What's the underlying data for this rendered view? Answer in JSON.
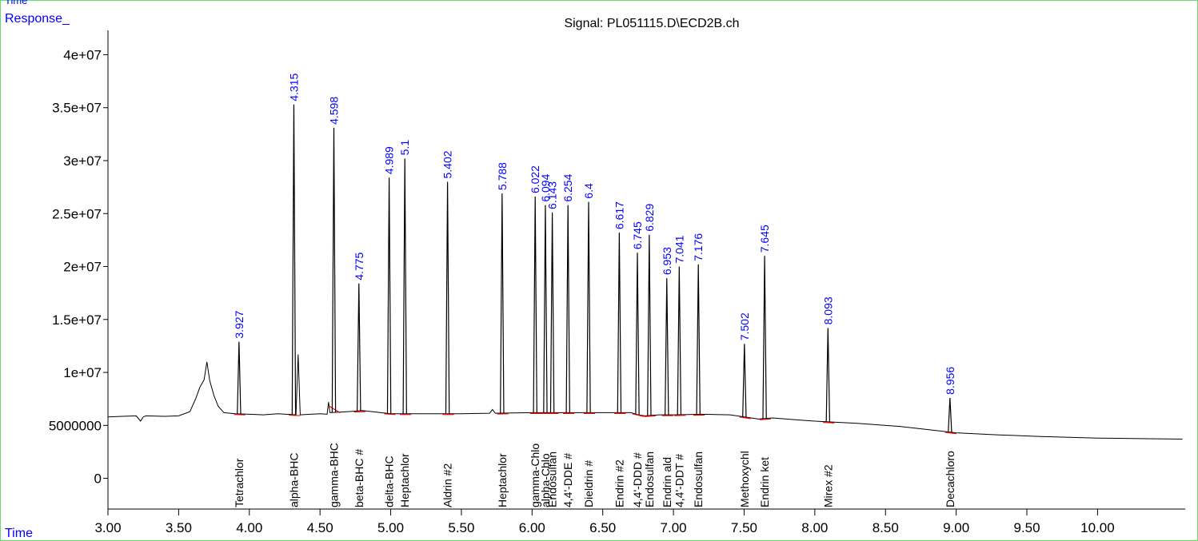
{
  "chart_data": {
    "type": "line",
    "title": "Signal: PL051115.D\\ECD2B.ch",
    "top_label": "Time",
    "y_label": "Response_",
    "x_label": "Time",
    "color": "#000000",
    "peak_label_color": "#0000ff",
    "frame_color": "#66dd66",
    "x": [
      3.0,
      3.1,
      3.2,
      3.23,
      3.25,
      3.27,
      3.4,
      3.5,
      3.58,
      3.62,
      3.65,
      3.68,
      3.7,
      3.72,
      3.75,
      3.78,
      3.82,
      3.9,
      4.0,
      4.1,
      4.2,
      4.33,
      4.345,
      4.36,
      4.5,
      4.55,
      4.56,
      4.57,
      4.7,
      4.8,
      5.0,
      5.5,
      5.7,
      5.72,
      5.74,
      6.0,
      6.5,
      6.7,
      6.75,
      6.8,
      6.9,
      7.0,
      7.2,
      7.4,
      7.55,
      7.6,
      7.7,
      7.9,
      8.0,
      8.3,
      8.6,
      9.0,
      9.3,
      9.6,
      10.0,
      10.3,
      10.6
    ],
    "values": [
      5800000,
      5850000,
      5900000,
      5400000,
      5800000,
      5900000,
      5850000,
      5900000,
      6300000,
      7500000,
      8600000,
      9300000,
      11000000,
      9200000,
      7800000,
      6800000,
      6200000,
      6100000,
      6050000,
      6000000,
      6100000,
      6000000,
      11700000,
      6000000,
      6100000,
      6050000,
      7200000,
      6200000,
      6300000,
      6400000,
      6100000,
      6100000,
      6150000,
      6500000,
      6150000,
      6200000,
      6200000,
      6200000,
      6000000,
      5900000,
      6000000,
      6000000,
      6050000,
      6000000,
      5700000,
      5600000,
      5700000,
      5500000,
      5400000,
      5200000,
      4900000,
      4300000,
      4100000,
      3950000,
      3800000,
      3750000,
      3700000
    ],
    "peaks": [
      {
        "time": 3.927,
        "height": 12900000,
        "compound": "Tetrachlor"
      },
      {
        "time": 4.315,
        "height": 35300000,
        "compound": "alpha-BHC"
      },
      {
        "time": 4.598,
        "height": 33100000,
        "compound": "gamma-BHC"
      },
      {
        "time": 4.775,
        "height": 18400000,
        "compound": "beta-BHC #"
      },
      {
        "time": 4.989,
        "height": 28400000,
        "compound": "delta-BHC"
      },
      {
        "time": 5.1,
        "height": 30200000,
        "compound": "Heptachlor"
      },
      {
        "time": 5.402,
        "height": 28000000,
        "compound": "Aldrin #2"
      },
      {
        "time": 5.788,
        "height": 26900000,
        "compound": "Heptachlor"
      },
      {
        "time": 6.022,
        "height": 26600000,
        "compound": "gamma-Chlo"
      },
      {
        "time": 6.094,
        "height": 25800000,
        "compound": "alpha-Chlo"
      },
      {
        "time": 6.143,
        "height": 25100000,
        "compound": "Endosulfan"
      },
      {
        "time": 6.254,
        "height": 25800000,
        "compound": "4,4'-DDE #"
      },
      {
        "time": 6.4,
        "height": 26100000,
        "compound": "Dieldrin #"
      },
      {
        "time": 6.617,
        "height": 23200000,
        "compound": "Endrin #2"
      },
      {
        "time": 6.745,
        "height": 21300000,
        "compound": "4,4'-DDD #"
      },
      {
        "time": 6.829,
        "height": 23000000,
        "compound": "Endosulfan"
      },
      {
        "time": 6.953,
        "height": 18900000,
        "compound": "Endrin ald"
      },
      {
        "time": 7.041,
        "height": 20000000,
        "compound": "4,4'-DDT #"
      },
      {
        "time": 7.176,
        "height": 20200000,
        "compound": "Endosulfan"
      },
      {
        "time": 7.502,
        "height": 12700000,
        "compound": "Methoxychl"
      },
      {
        "time": 7.645,
        "height": 21000000,
        "compound": "Endrin ket"
      },
      {
        "time": 8.093,
        "height": 14200000,
        "compound": "Mirex #2"
      },
      {
        "time": 8.956,
        "height": 7600000,
        "compound": "Decachloro"
      }
    ],
    "xlim": [
      3.0,
      10.62
    ],
    "ylim": [
      -2900000,
      42300000
    ],
    "xticks": [
      {
        "value": 3.0,
        "label": "3.00"
      },
      {
        "value": 3.5,
        "label": "3.50"
      },
      {
        "value": 4.0,
        "label": "4.00"
      },
      {
        "value": 4.5,
        "label": "4.50"
      },
      {
        "value": 5.0,
        "label": "5.00"
      },
      {
        "value": 5.5,
        "label": "5.50"
      },
      {
        "value": 6.0,
        "label": "6.00"
      },
      {
        "value": 6.5,
        "label": "6.50"
      },
      {
        "value": 7.0,
        "label": "7.00"
      },
      {
        "value": 7.5,
        "label": "7.50"
      },
      {
        "value": 8.0,
        "label": "8.00"
      },
      {
        "value": 8.5,
        "label": "8.50"
      },
      {
        "value": 9.0,
        "label": "9.00"
      },
      {
        "value": 9.5,
        "label": "9.50"
      },
      {
        "value": 10.0,
        "label": "10.00"
      }
    ],
    "yticks": [
      0,
      5000000,
      {
        "value": 10000000,
        "label": "1e+07"
      },
      {
        "value": 15000000,
        "label": "1.5e+07"
      },
      {
        "value": 20000000,
        "label": "2e+07"
      },
      {
        "value": 25000000,
        "label": "2.5e+07"
      },
      {
        "value": 30000000,
        "label": "3e+07"
      },
      {
        "value": 35000000,
        "label": "3.5e+07"
      },
      {
        "value": 40000000,
        "label": "4e+07"
      }
    ]
  }
}
